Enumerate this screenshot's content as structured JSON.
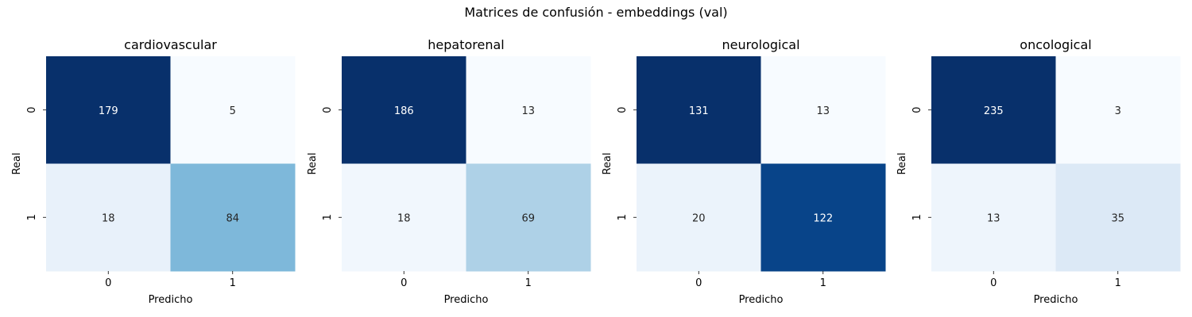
{
  "suptitle": "Matrices de confusión - embeddings (val)",
  "colormap": "Blues",
  "chart_data": [
    {
      "type": "heatmap",
      "title": "cardiovascular",
      "xlabel": "Predicho",
      "ylabel": "Real",
      "x_ticks": [
        "0",
        "1"
      ],
      "y_ticks": [
        "0",
        "1"
      ],
      "values": [
        [
          179,
          5
        ],
        [
          18,
          84
        ]
      ]
    },
    {
      "type": "heatmap",
      "title": "hepatorenal",
      "xlabel": "Predicho",
      "ylabel": "Real",
      "x_ticks": [
        "0",
        "1"
      ],
      "y_ticks": [
        "0",
        "1"
      ],
      "values": [
        [
          186,
          13
        ],
        [
          18,
          69
        ]
      ]
    },
    {
      "type": "heatmap",
      "title": "neurological",
      "xlabel": "Predicho",
      "ylabel": "Real",
      "x_ticks": [
        "0",
        "1"
      ],
      "y_ticks": [
        "0",
        "1"
      ],
      "values": [
        [
          131,
          13
        ],
        [
          20,
          122
        ]
      ]
    },
    {
      "type": "heatmap",
      "title": "oncological",
      "xlabel": "Predicho",
      "ylabel": "Real",
      "x_ticks": [
        "0",
        "1"
      ],
      "y_ticks": [
        "0",
        "1"
      ],
      "values": [
        [
          235,
          3
        ],
        [
          13,
          35
        ]
      ]
    }
  ]
}
